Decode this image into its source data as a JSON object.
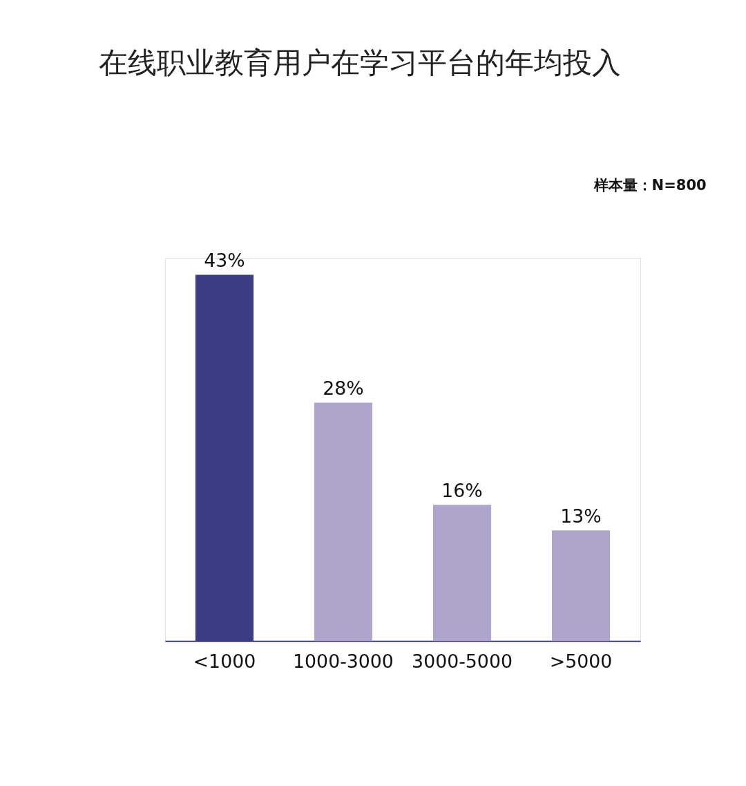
{
  "chart_data": {
    "type": "bar",
    "title": "在线职业教育用户在学习平台的年均投入",
    "annotations": [
      "样本量：N=800"
    ],
    "categories": [
      "<1000",
      "1000-3000",
      "3000-5000",
      ">5000"
    ],
    "values": [
      43,
      28,
      16,
      13
    ],
    "colors": [
      "#3b3d85",
      "#aea4cc",
      "#aea4cc",
      "#aea4cc"
    ],
    "value_labels": [
      "43%",
      "28%",
      "16%",
      "13%"
    ],
    "grid": false
  }
}
